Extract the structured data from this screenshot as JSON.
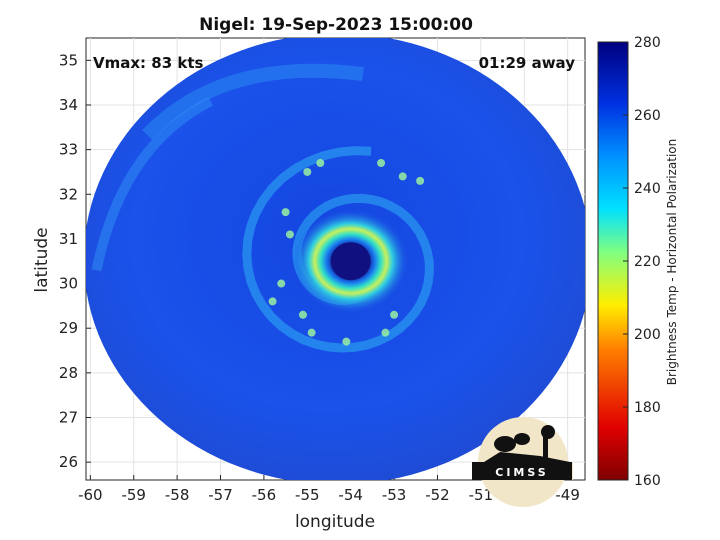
{
  "chart_data": {
    "type": "heatmap",
    "title": "Nigel: 19-Sep-2023 15:00:00",
    "xlabel": "longitude",
    "ylabel": "latitude",
    "xlim": [
      -60.1,
      -48.6
    ],
    "ylim": [
      25.6,
      35.5
    ],
    "xticks": [
      "-60",
      "-59",
      "-58",
      "-57",
      "-56",
      "-55",
      "-54",
      "-53",
      "-52",
      "-51",
      "-50",
      "-49"
    ],
    "yticks": [
      "26",
      "27",
      "28",
      "29",
      "30",
      "31",
      "32",
      "33",
      "34",
      "35"
    ],
    "grid": true,
    "annotations": {
      "vmax": "Vmax: 83 kts",
      "time_away": "01:29 away"
    },
    "colorbar": {
      "label": "Brightness Temp - Horizontal Polarization",
      "range": [
        160,
        280
      ],
      "ticks": [
        "160",
        "180",
        "200",
        "220",
        "240",
        "260",
        "280"
      ],
      "colormap": [
        "#7f0000",
        "#ff0000",
        "#ffff00",
        "#00ffff",
        "#0060ff",
        "#0000a0",
        "#00007f"
      ]
    },
    "eye_center": {
      "lon": -54.0,
      "lat": 30.5
    },
    "swath": {
      "center_lon": -54.3,
      "center_lat": 30.55,
      "half_width_deg": 5.85,
      "half_height_deg": 5.05
    },
    "logo": "CIMSS"
  }
}
